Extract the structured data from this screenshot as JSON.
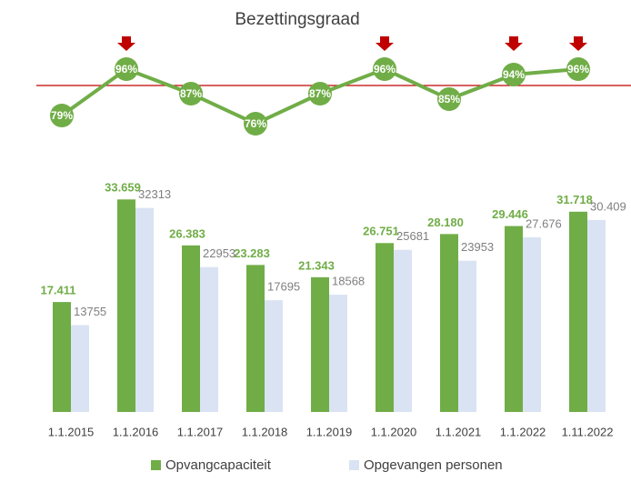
{
  "chart_data": [
    {
      "type": "line",
      "title": "Bezettingsgraad",
      "values": [
        79,
        96,
        87,
        76,
        87,
        96,
        85,
        94,
        96
      ],
      "value_labels": [
        "79%",
        "96%",
        "87%",
        "76%",
        "87%",
        "96%",
        "85%",
        "94%",
        "96%"
      ],
      "color": "#70ad47",
      "threshold": 90,
      "threshold_color": "#c00000",
      "ylim": [
        70,
        100
      ]
    },
    {
      "type": "bar",
      "categories": [
        "1.1.2015",
        "1.1.2016",
        "1.1.2017",
        "1.1.2018",
        "1.1.2019",
        "1.1.2020",
        "1.1.2021",
        "1.1.2022",
        "1.11.2022"
      ],
      "series": [
        {
          "name": "Opvangcapaciteit",
          "color": "#70ad47",
          "values": [
            17411,
            33659,
            26383,
            23283,
            21343,
            26751,
            28180,
            29446,
            31718
          ],
          "value_labels": [
            "17.411",
            "33.659",
            "26.383",
            "23.283",
            "21.343",
            "26.751",
            "28.180",
            "29.446",
            "31.718"
          ]
        },
        {
          "name": "Opgevangen personen",
          "color": "#dae3f3",
          "values": [
            13755,
            32313,
            22953,
            17695,
            18568,
            25681,
            23953,
            27676,
            30409
          ],
          "value_labels": [
            "13755",
            "32313",
            "22953",
            "17695",
            "18568",
            "25681",
            "23953",
            "27.676",
            "30.409"
          ]
        }
      ],
      "ylim": [
        0,
        35000
      ],
      "legend": "bottom"
    }
  ]
}
